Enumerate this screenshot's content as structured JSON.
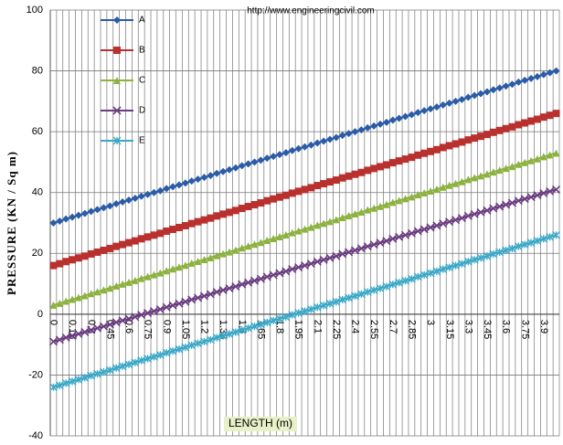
{
  "chart_data": {
    "type": "line",
    "watermark": "http://www.engineeringcivil.com",
    "x_label": "LENGTH (m)",
    "y_label": "PRESSURE (KN / Sq m)",
    "categories": [
      "0",
      null,
      null,
      "0.15",
      null,
      null,
      "0.3",
      null,
      null,
      "0.45",
      null,
      null,
      "0.6",
      null,
      null,
      "0.75",
      null,
      null,
      "0.9",
      null,
      null,
      "1.05",
      null,
      null,
      "1.2",
      null,
      null,
      "1.35",
      null,
      null,
      "1.5",
      null,
      null,
      "1.65",
      null,
      null,
      "1.8",
      null,
      null,
      "1.95",
      null,
      null,
      "2.1",
      null,
      null,
      "2.25",
      null,
      null,
      "2.4",
      null,
      null,
      "2.55",
      null,
      null,
      "2.7",
      null,
      null,
      "2.85",
      null,
      null,
      "3",
      null,
      null,
      "3.15",
      null,
      null,
      "3.3",
      null,
      null,
      "3.45",
      null,
      null,
      "3.6",
      null,
      null,
      "3.75",
      null,
      null,
      "3.9",
      null,
      null
    ],
    "series": [
      {
        "name": "A",
        "color": "#2b5ca8",
        "marker": "diamond",
        "values": [
          30,
          30.6,
          31.3,
          31.9,
          32.5,
          33.1,
          33.8,
          34.4,
          35,
          35.6,
          36.3,
          36.9,
          37.5,
          38.1,
          38.8,
          39.4,
          40,
          40.6,
          41.3,
          41.9,
          42.5,
          43.1,
          43.8,
          44.4,
          45,
          45.6,
          46.3,
          46.9,
          47.5,
          48.1,
          48.8,
          49.4,
          50,
          50.6,
          51.3,
          51.9,
          52.5,
          53.1,
          53.8,
          54.4,
          55,
          55.6,
          56.3,
          56.9,
          57.5,
          58.1,
          58.8,
          59.4,
          60,
          60.6,
          61.3,
          61.9,
          62.5,
          63.1,
          63.8,
          64.4,
          65,
          65.6,
          66.3,
          66.9,
          67.5,
          68.1,
          68.8,
          69.4,
          70,
          70.6,
          71.3,
          71.9,
          72.5,
          73.1,
          73.8,
          74.4,
          75,
          75.6,
          76.3,
          76.9,
          77.5,
          78.1,
          78.8,
          79.4,
          80
        ]
      },
      {
        "name": "B",
        "color": "#b8312f",
        "marker": "square",
        "values": [
          16,
          16.6,
          17.3,
          17.9,
          18.5,
          19.1,
          19.8,
          20.4,
          21,
          21.6,
          22.3,
          22.9,
          23.5,
          24.1,
          24.8,
          25.4,
          26,
          26.6,
          27.3,
          27.9,
          28.5,
          29.1,
          29.8,
          30.4,
          31,
          31.6,
          32.3,
          32.9,
          33.5,
          34.1,
          34.8,
          35.4,
          36,
          36.6,
          37.3,
          37.9,
          38.5,
          39.1,
          39.8,
          40.4,
          41,
          41.6,
          42.3,
          42.9,
          43.5,
          44.1,
          44.8,
          45.4,
          46,
          46.6,
          47.3,
          47.9,
          48.5,
          49.1,
          49.8,
          50.4,
          51,
          51.6,
          52.3,
          52.9,
          53.5,
          54.1,
          54.8,
          55.4,
          56,
          56.6,
          57.3,
          57.9,
          58.5,
          59.1,
          59.8,
          60.4,
          61,
          61.6,
          62.3,
          62.9,
          63.5,
          64.1,
          64.8,
          65.4,
          66
        ]
      },
      {
        "name": "C",
        "color": "#8cb33c",
        "marker": "triangle",
        "values": [
          3,
          3.6,
          4.3,
          4.9,
          5.5,
          6.1,
          6.8,
          7.4,
          8,
          8.6,
          9.3,
          9.9,
          10.5,
          11.1,
          11.8,
          12.4,
          13,
          13.6,
          14.3,
          14.9,
          15.5,
          16.1,
          16.8,
          17.4,
          18,
          18.6,
          19.3,
          19.9,
          20.5,
          21.1,
          21.8,
          22.4,
          23,
          23.6,
          24.3,
          24.9,
          25.5,
          26.1,
          26.8,
          27.4,
          28,
          28.6,
          29.3,
          29.9,
          30.5,
          31.1,
          31.8,
          32.4,
          33,
          33.6,
          34.3,
          34.9,
          35.5,
          36.1,
          36.8,
          37.4,
          38,
          38.6,
          39.3,
          39.9,
          40.5,
          41.1,
          41.8,
          42.4,
          43,
          43.6,
          44.3,
          44.9,
          45.5,
          46.1,
          46.8,
          47.4,
          48,
          48.6,
          49.3,
          49.9,
          50.5,
          51.1,
          51.8,
          52.4,
          53
        ]
      },
      {
        "name": "D",
        "color": "#6a3d80",
        "marker": "cross",
        "values": [
          -9,
          -8.4,
          -7.7,
          -7.1,
          -6.5,
          -5.9,
          -5.2,
          -4.6,
          -4,
          -3.4,
          -2.7,
          -2.1,
          -1.5,
          -0.9,
          -0.2,
          0.4,
          1,
          1.6,
          2.3,
          2.9,
          3.5,
          4.1,
          4.8,
          5.4,
          6,
          6.6,
          7.3,
          7.9,
          8.5,
          9.1,
          9.8,
          10.4,
          11,
          11.6,
          12.3,
          12.9,
          13.5,
          14.1,
          14.8,
          15.4,
          16,
          16.6,
          17.3,
          17.9,
          18.5,
          19.1,
          19.8,
          20.4,
          21,
          21.6,
          22.3,
          22.9,
          23.5,
          24.1,
          24.8,
          25.4,
          26,
          26.6,
          27.3,
          27.9,
          28.5,
          29.1,
          29.8,
          30.4,
          31,
          31.6,
          32.3,
          32.9,
          33.5,
          34.1,
          34.8,
          35.4,
          36,
          36.6,
          37.3,
          37.9,
          38.5,
          39.1,
          39.8,
          40.4,
          41
        ]
      },
      {
        "name": "E",
        "color": "#3ba8c8",
        "marker": "star",
        "values": [
          -24,
          -23.4,
          -22.7,
          -22.1,
          -21.5,
          -20.9,
          -20.2,
          -19.6,
          -19,
          -18.4,
          -17.7,
          -17.1,
          -16.5,
          -15.9,
          -15.2,
          -14.6,
          -14,
          -13.4,
          -12.7,
          -12.1,
          -11.5,
          -10.9,
          -10.2,
          -9.6,
          -9,
          -8.4,
          -7.7,
          -7.1,
          -6.5,
          -5.9,
          -5.2,
          -4.6,
          -4,
          -3.4,
          -2.7,
          -2.1,
          -1.5,
          -0.9,
          -0.2,
          0.4,
          1,
          1.6,
          2.3,
          2.9,
          3.5,
          4.1,
          4.8,
          5.4,
          6,
          6.6,
          7.3,
          7.9,
          8.5,
          9.1,
          9.8,
          10.4,
          11,
          11.6,
          12.3,
          12.9,
          13.5,
          14.1,
          14.8,
          15.4,
          16,
          16.6,
          17.3,
          17.9,
          18.5,
          19.1,
          19.8,
          20.4,
          21,
          21.6,
          22.3,
          22.9,
          23.5,
          24.1,
          24.8,
          25.4,
          26
        ]
      }
    ],
    "ylim": [
      -40,
      100
    ],
    "yticks": [
      -40,
      -20,
      0,
      20,
      40,
      60,
      80,
      100
    ],
    "grid": true
  }
}
